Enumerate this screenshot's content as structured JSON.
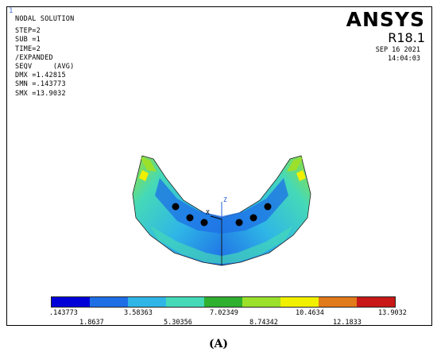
{
  "viewport": {
    "corner_label": "1"
  },
  "info": {
    "title": "NODAL SOLUTION",
    "lines": [
      "STEP=2",
      "SUB =1",
      "TIME=2",
      "/EXPANDED",
      "SEQV     (AVG)",
      "DMX =1.42815",
      "SMN =.143773",
      "SMX =13.9032"
    ]
  },
  "brand": {
    "name": "ANSYS",
    "version": "R18.1"
  },
  "stamp": {
    "date": "SEP 16 2021",
    "time": "14:04:03"
  },
  "triad": {
    "x_label": "X",
    "z_label": "Z"
  },
  "legend": {
    "colors": [
      "#0000d8",
      "#1e6fe6",
      "#2fb6e6",
      "#45d9b8",
      "#2fb02f",
      "#9be02a",
      "#f0f000",
      "#e07a1a",
      "#c81818"
    ],
    "top_labels": [
      ".143773",
      "3.58363",
      "7.02349",
      "10.4634",
      "13.9032"
    ],
    "bottom_labels": [
      "1.8637",
      "5.30356",
      "8.74342",
      "12.1833"
    ]
  },
  "caption": {
    "text": "(A)"
  }
}
